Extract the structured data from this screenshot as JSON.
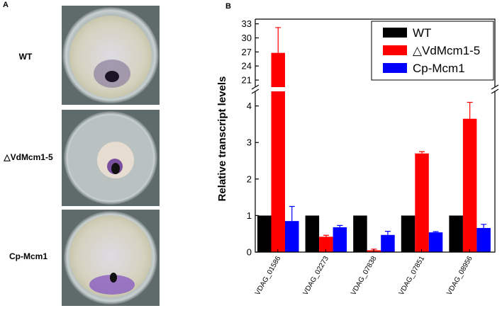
{
  "panel_a": {
    "label": "A",
    "strains": [
      "WT",
      "△VdMcm1-5",
      "Cp-Mcm1"
    ]
  },
  "chart_data": {
    "type": "bar",
    "panel_label": "B",
    "y_label": "Relative transcript levels",
    "categories": [
      "VDAG_01586",
      "VDAG_02273",
      "VDAG_07838",
      "VDAG_07851",
      "VDAG_08956"
    ],
    "series": [
      {
        "name": "WT",
        "color": "#000000",
        "values": [
          1,
          1,
          1,
          1,
          1
        ]
      },
      {
        "name": "△VdMcm1-5",
        "color": "#ff0000",
        "values": [
          26.8,
          0.42,
          0.05,
          2.7,
          3.65
        ],
        "errors": [
          5.4,
          0.04,
          0.03,
          0.05,
          0.45
        ]
      },
      {
        "name": "Cp-Mcm1",
        "color": "#0000ff",
        "values": [
          0.85,
          0.68,
          0.47,
          0.54,
          0.66
        ],
        "errors": [
          0.4,
          0.05,
          0.1,
          0.02,
          0.1
        ]
      }
    ],
    "ylim": [
      0,
      34
    ],
    "axis_break": [
      4.4,
      19.5
    ],
    "yticks": [
      0,
      1,
      2,
      3,
      4,
      21,
      24,
      27,
      30,
      33
    ],
    "legend": "upper right"
  }
}
